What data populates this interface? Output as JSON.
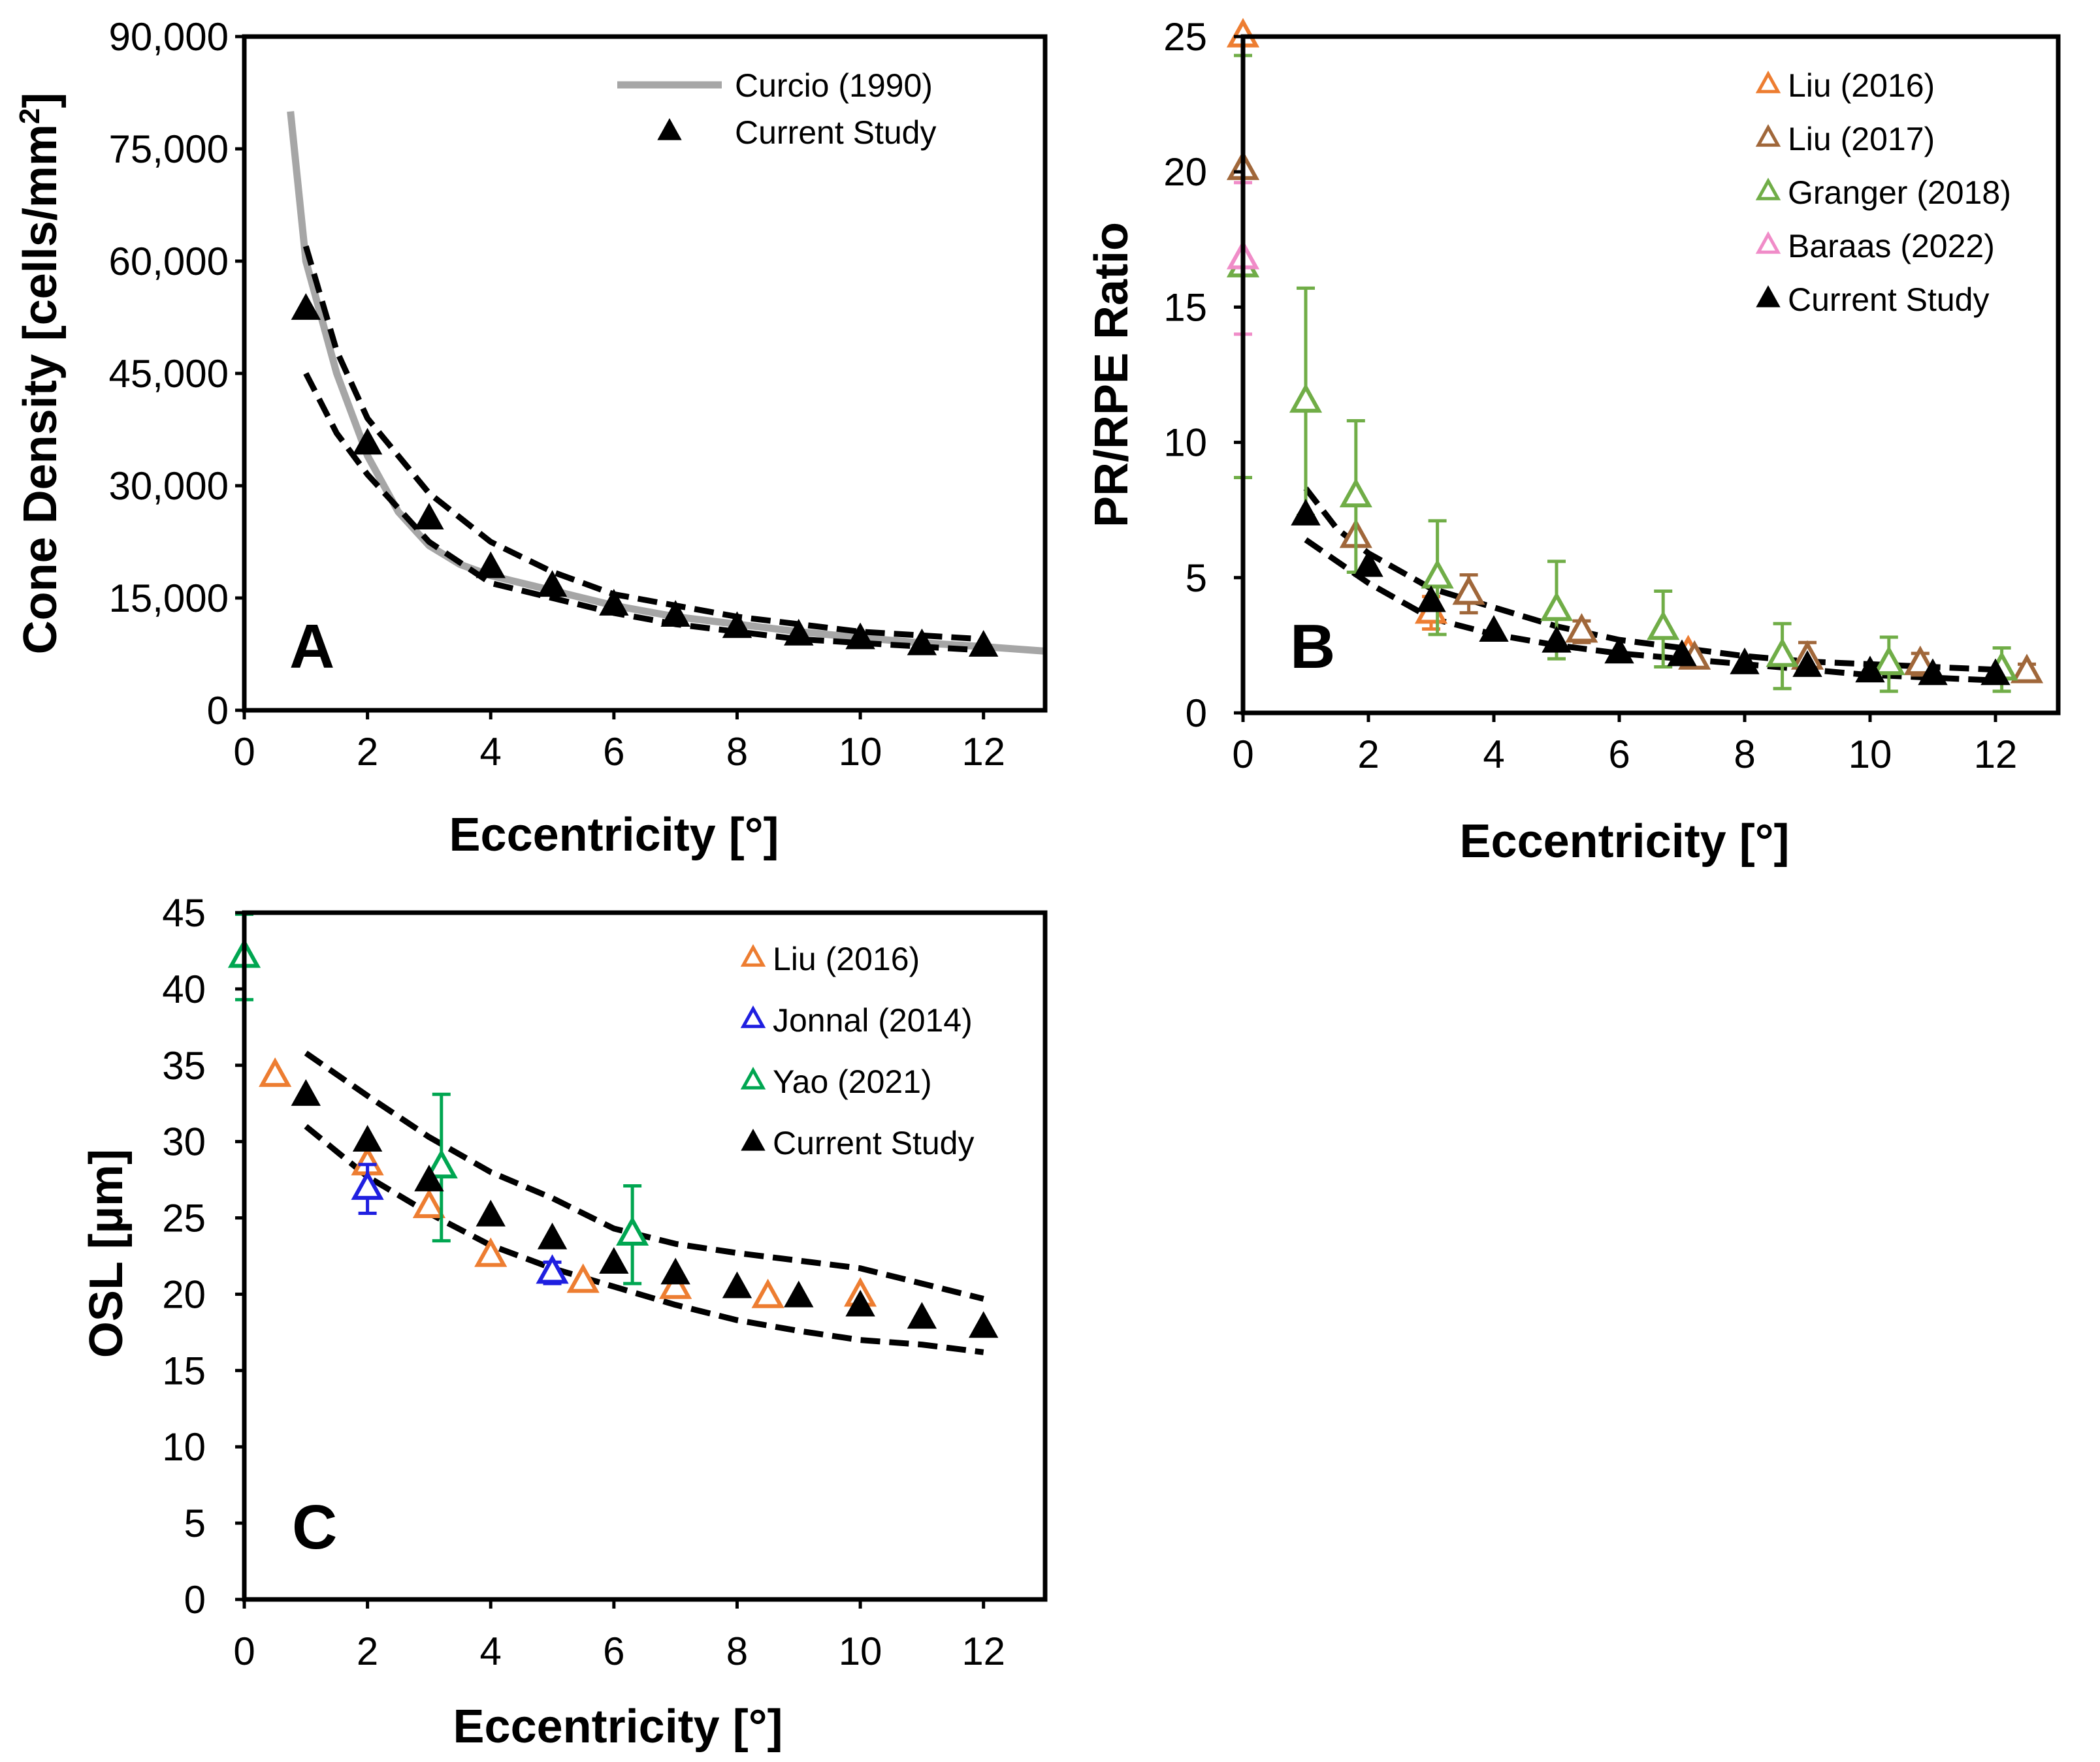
{
  "chart_data": [
    {
      "panel": "A",
      "type": "scatter",
      "panel_label": "A",
      "xlabel": "Eccentricity [°]",
      "ylabel_main": "Cone Density [cells/mm",
      "ylabel_sup": "2",
      "ylabel_end": "]",
      "xlim": [
        0,
        13
      ],
      "ylim": [
        0,
        90000
      ],
      "xticks": [
        0,
        2,
        4,
        6,
        8,
        10,
        12
      ],
      "yticks": [
        0,
        15000,
        30000,
        45000,
        60000,
        75000,
        90000
      ],
      "ytick_labels": [
        "0",
        "15,000",
        "30,000",
        "45,000",
        "60,000",
        "75,000",
        "90,000"
      ],
      "legend": [
        {
          "label": "Curcio (1990)",
          "marker": "line",
          "color": "#A6A6A6"
        },
        {
          "label": "Current Study",
          "marker": "triangle-filled",
          "color": "#000000"
        }
      ],
      "lines": [
        {
          "name": "Curcio (1990)",
          "style": "solid",
          "color": "#A6A6A6",
          "x": [
            0.75,
            1,
            1.5,
            2,
            2.5,
            3,
            3.5,
            4,
            5,
            6,
            7,
            8,
            9,
            10,
            11,
            12,
            13
          ],
          "y": [
            80000,
            60000,
            45000,
            34000,
            26500,
            22000,
            19500,
            18000,
            16000,
            14000,
            12500,
            11500,
            10500,
            9700,
            9000,
            8500,
            7900
          ]
        },
        {
          "name": "upper bound",
          "style": "dashed",
          "color": "#000000",
          "x": [
            1,
            1.5,
            2,
            3,
            4,
            5,
            6,
            7,
            8,
            9,
            10,
            11,
            12
          ],
          "y": [
            62000,
            48000,
            39000,
            29000,
            22500,
            18500,
            15500,
            14000,
            12500,
            11500,
            10500,
            10000,
            9500
          ]
        },
        {
          "name": "lower bound",
          "style": "dashed",
          "color": "#000000",
          "x": [
            1,
            1.5,
            2,
            3,
            4,
            5,
            6,
            7,
            8,
            9,
            10,
            11,
            12
          ],
          "y": [
            45000,
            37000,
            31500,
            22500,
            17000,
            15000,
            13000,
            11500,
            10500,
            9500,
            9000,
            8500,
            8000
          ]
        }
      ],
      "series": [
        {
          "name": "Current Study",
          "marker": "triangle-filled",
          "color": "#000000",
          "x": [
            1,
            2,
            3,
            4,
            5,
            6,
            7,
            8,
            9,
            10,
            11,
            12
          ],
          "y": [
            53500,
            35500,
            25500,
            19000,
            16500,
            14000,
            12500,
            11000,
            10000,
            9500,
            8700,
            8500
          ]
        }
      ]
    },
    {
      "panel": "B",
      "type": "scatter",
      "panel_label": "B",
      "xlabel": "Eccentricity [°]",
      "ylabel": "PR/RPE Ratio",
      "xlim": [
        0,
        13
      ],
      "ylim": [
        0,
        25
      ],
      "xticks": [
        0,
        2,
        4,
        6,
        8,
        10,
        12
      ],
      "yticks": [
        0,
        5,
        10,
        15,
        20,
        25
      ],
      "ytick_labels": [
        "0",
        "5",
        "10",
        "15",
        "20",
        "25"
      ],
      "legend": [
        {
          "label": "Liu (2016)",
          "marker": "triangle-open",
          "color": "#ED7D31"
        },
        {
          "label": "Liu (2017)",
          "marker": "triangle-open",
          "color": "#A0673A"
        },
        {
          "label": "Granger (2018)",
          "marker": "triangle-open",
          "color": "#70AD47"
        },
        {
          "label": "Baraas (2022)",
          "marker": "triangle-open",
          "color": "#F08CC8"
        },
        {
          "label": "Current Study",
          "marker": "triangle-filled",
          "color": "#000000"
        }
      ],
      "lines": [
        {
          "name": "upper bound",
          "style": "dashed",
          "color": "#000000",
          "x": [
            1,
            1.5,
            2,
            3,
            4,
            5,
            6,
            7,
            8,
            9,
            10,
            11,
            12
          ],
          "y": [
            8.3,
            6.8,
            5.9,
            4.6,
            3.9,
            3.2,
            2.7,
            2.4,
            2.1,
            1.9,
            1.8,
            1.7,
            1.6
          ]
        },
        {
          "name": "lower bound",
          "style": "dashed",
          "color": "#000000",
          "x": [
            1,
            1.5,
            2,
            3,
            4,
            5,
            6,
            7,
            8,
            9,
            10,
            11,
            12
          ],
          "y": [
            6.4,
            5.6,
            4.8,
            3.5,
            2.9,
            2.5,
            2.2,
            2.0,
            1.8,
            1.6,
            1.4,
            1.3,
            1.2
          ]
        }
      ],
      "series": [
        {
          "name": "Liu (2016)",
          "marker": "triangle-open",
          "color": "#ED7D31",
          "x": [
            0,
            3,
            7.1
          ],
          "y": [
            25,
            3.7,
            2.2
          ],
          "err": [
            0,
            0.6,
            0
          ]
        },
        {
          "name": "Liu (2017)",
          "marker": "triangle-open",
          "color": "#A0673A",
          "x": [
            0,
            1.8,
            3.6,
            5.4,
            7.2,
            9,
            10.8,
            12.5
          ],
          "y": [
            20.1,
            6.5,
            4.4,
            3.0,
            2.0,
            2.0,
            1.8,
            1.5
          ],
          "err": [
            0,
            0,
            0.7,
            0.4,
            0,
            0.6,
            0.4,
            0.3
          ]
        },
        {
          "name": "Granger (2018)",
          "marker": "triangle-open",
          "color": "#70AD47",
          "x": [
            0,
            1,
            1.8,
            3.1,
            5,
            6.7,
            8.6,
            10.3,
            12.1
          ],
          "y": [
            16.5,
            11.5,
            8.0,
            5.0,
            3.8,
            3.1,
            2.1,
            1.8,
            1.6
          ],
          "err": [
            7.8,
            4.2,
            2.8,
            2.1,
            1.8,
            1.4,
            1.2,
            1.0,
            0.8
          ]
        },
        {
          "name": "Baraas (2022)",
          "marker": "triangle-open",
          "color": "#F08CC8",
          "x": [
            0
          ],
          "y": [
            16.8
          ],
          "err": [
            2.8
          ]
        },
        {
          "name": "Current Study",
          "marker": "triangle-filled",
          "color": "#000000",
          "x": [
            1,
            2,
            3,
            4,
            5,
            6,
            7,
            8,
            9,
            10,
            11,
            12
          ],
          "y": [
            7.3,
            5.4,
            4.1,
            3.0,
            2.6,
            2.2,
            2.1,
            1.8,
            1.7,
            1.5,
            1.4,
            1.4
          ]
        }
      ]
    },
    {
      "panel": "C",
      "type": "scatter",
      "panel_label": "C",
      "xlabel": "Eccentricity [°]",
      "ylabel": "OSL [µm]",
      "xlim": [
        0,
        13
      ],
      "ylim": [
        0,
        45
      ],
      "xticks": [
        0,
        2,
        4,
        6,
        8,
        10,
        12
      ],
      "yticks": [
        0,
        5,
        10,
        15,
        20,
        25,
        30,
        35,
        40,
        45
      ],
      "ytick_labels": [
        "0",
        "5",
        "10",
        "15",
        "20",
        "25",
        "30",
        "35",
        "40",
        "45"
      ],
      "legend": [
        {
          "label": "Liu (2016)",
          "marker": "triangle-open",
          "color": "#ED7D31"
        },
        {
          "label": "Jonnal (2014)",
          "marker": "triangle-open",
          "color": "#1F1FE0"
        },
        {
          "label": "Yao (2021)",
          "marker": "triangle-open",
          "color": "#00A651"
        },
        {
          "label": "Current Study",
          "marker": "triangle-filled",
          "color": "#000000"
        }
      ],
      "lines": [
        {
          "name": "upper bound",
          "style": "dashed",
          "color": "#000000",
          "x": [
            1,
            2,
            3,
            4,
            5,
            6,
            7,
            8,
            9,
            10,
            11,
            12
          ],
          "y": [
            35.8,
            33.0,
            30.3,
            28.0,
            26.3,
            24.3,
            23.3,
            22.7,
            22.2,
            21.7,
            20.7,
            19.7
          ]
        },
        {
          "name": "lower bound",
          "style": "dashed",
          "color": "#000000",
          "x": [
            1,
            2,
            3,
            4,
            5,
            6,
            7,
            8,
            9,
            10,
            11,
            12
          ],
          "y": [
            31.0,
            27.7,
            25.3,
            23.2,
            21.7,
            20.5,
            19.3,
            18.3,
            17.6,
            17.0,
            16.7,
            16.2
          ]
        }
      ],
      "series": [
        {
          "name": "Liu (2016)",
          "marker": "triangle-open",
          "color": "#ED7D31",
          "x": [
            0.5,
            2,
            3,
            4,
            5.5,
            7,
            8.5,
            10
          ],
          "y": [
            34.3,
            28.5,
            25.7,
            22.5,
            20.8,
            20.4,
            19.8,
            19.9
          ],
          "err": [
            0,
            0,
            0,
            0,
            0,
            0,
            0,
            0
          ]
        },
        {
          "name": "Jonnal (2014)",
          "marker": "triangle-open",
          "color": "#1F1FE0",
          "x": [
            2,
            5
          ],
          "y": [
            26.9,
            21.4
          ],
          "err": [
            1.6,
            0.7
          ]
        },
        {
          "name": "Yao (2021)",
          "marker": "triangle-open",
          "color": "#00A651",
          "x": [
            0,
            3.2,
            6.3
          ],
          "y": [
            42.1,
            28.3,
            23.9
          ],
          "err": [
            2.8,
            4.8,
            3.2
          ]
        },
        {
          "name": "Current Study",
          "marker": "triangle-filled",
          "color": "#000000",
          "x": [
            1,
            2,
            3,
            4,
            5,
            6,
            7,
            8,
            9,
            10,
            11,
            12
          ],
          "y": [
            33.0,
            30.0,
            27.4,
            25.1,
            23.6,
            22.0,
            21.3,
            20.4,
            19.8,
            19.2,
            18.4,
            17.8
          ]
        }
      ]
    }
  ]
}
